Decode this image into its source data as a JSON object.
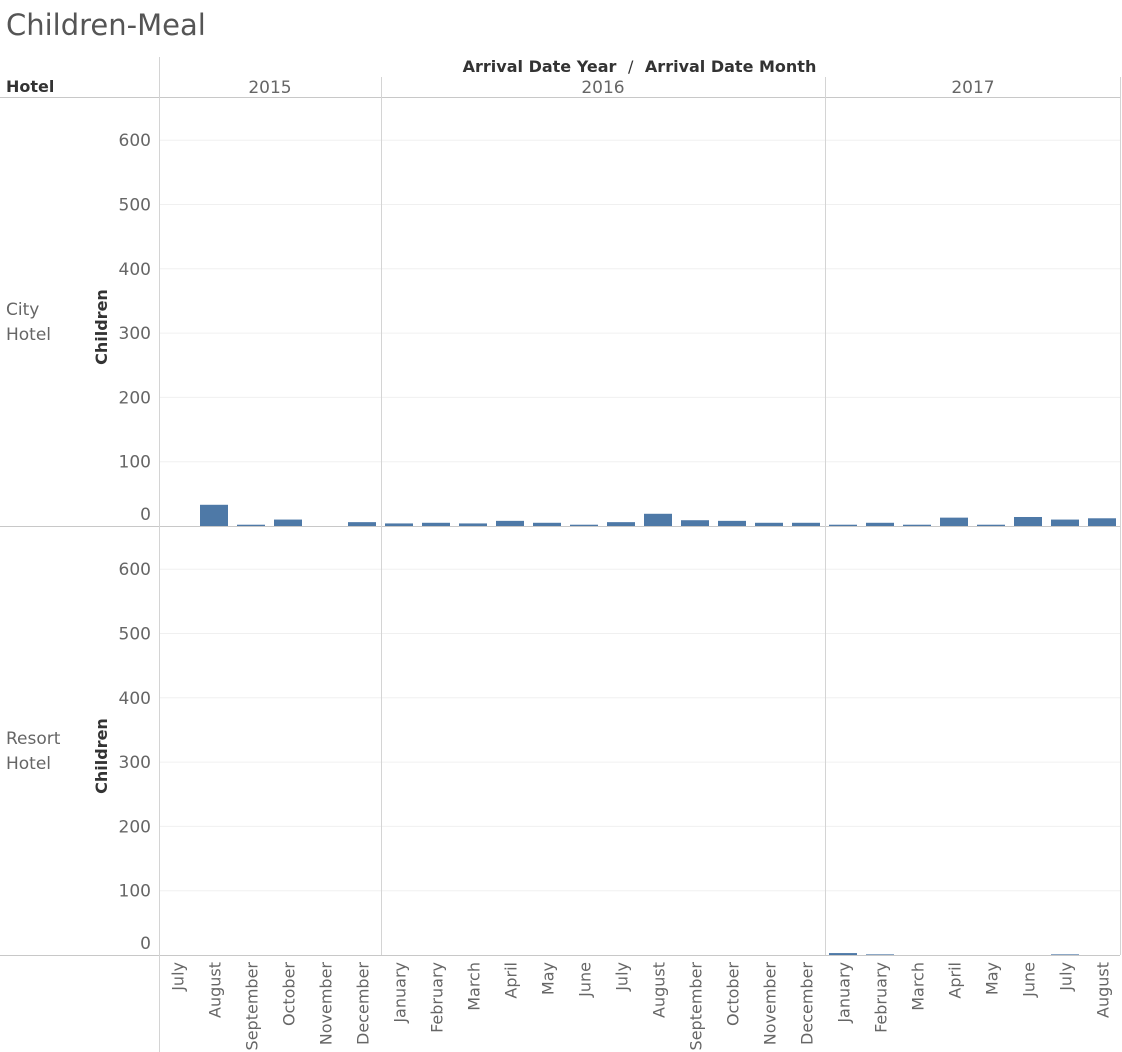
{
  "title": "Children-Meal",
  "column_header": {
    "first": "Arrival Date Year",
    "separator": "/",
    "second": "Arrival Date Month"
  },
  "row_header": "Hotel",
  "chart_data": {
    "type": "bar",
    "title": "Children-Meal",
    "ylabel": "Children",
    "ylim": [
      0,
      650
    ],
    "yticks": [
      0,
      100,
      200,
      300,
      400,
      500,
      600
    ],
    "grid": true,
    "bar_color": "#4e79a7",
    "years": [
      {
        "year": "2015",
        "months": [
          "July",
          "August",
          "September",
          "October",
          "November",
          "December"
        ]
      },
      {
        "year": "2016",
        "months": [
          "January",
          "February",
          "March",
          "April",
          "May",
          "June",
          "July",
          "August",
          "September",
          "October",
          "November",
          "December"
        ]
      },
      {
        "year": "2017",
        "months": [
          "January",
          "February",
          "March",
          "April",
          "May",
          "June",
          "July",
          "August"
        ]
      }
    ],
    "panels": [
      {
        "hotel_lines": [
          "City",
          "Hotel"
        ],
        "values": [
          0,
          33,
          2,
          10,
          0,
          6,
          4,
          5,
          4,
          8,
          5,
          2,
          6,
          19,
          9,
          8,
          5,
          5,
          2,
          5,
          2,
          13,
          2,
          14,
          10,
          12
        ]
      },
      {
        "hotel_lines": [
          "Resort",
          "Hotel"
        ],
        "values": [
          0,
          0,
          0,
          0,
          0,
          0,
          0,
          0,
          0,
          0,
          0,
          0,
          0,
          0,
          0,
          0,
          0,
          0,
          3,
          1,
          0,
          0,
          0,
          0,
          1,
          0
        ]
      }
    ]
  }
}
